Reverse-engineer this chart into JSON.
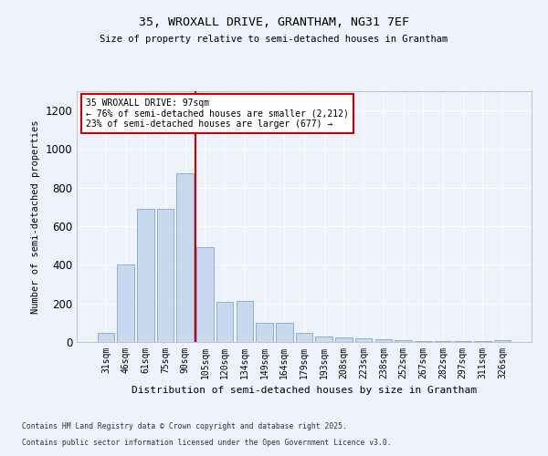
{
  "title1": "35, WROXALL DRIVE, GRANTHAM, NG31 7EF",
  "title2": "Size of property relative to semi-detached houses in Grantham",
  "xlabel": "Distribution of semi-detached houses by size in Grantham",
  "ylabel": "Number of semi-detached properties",
  "bin_labels": [
    "31sqm",
    "46sqm",
    "61sqm",
    "75sqm",
    "90sqm",
    "105sqm",
    "120sqm",
    "134sqm",
    "149sqm",
    "164sqm",
    "179sqm",
    "193sqm",
    "208sqm",
    "223sqm",
    "238sqm",
    "252sqm",
    "267sqm",
    "282sqm",
    "297sqm",
    "311sqm",
    "326sqm"
  ],
  "bar_heights": [
    45,
    400,
    690,
    690,
    875,
    490,
    210,
    215,
    100,
    100,
    45,
    30,
    25,
    20,
    12,
    10,
    5,
    5,
    5,
    5,
    10
  ],
  "bar_color": "#c8d8ef",
  "bar_edgecolor": "#8ab0d8",
  "annotation_line1": "35 WROXALL DRIVE: 97sqm",
  "annotation_line2": "← 76% of semi-detached houses are smaller (2,212)",
  "annotation_line3": "23% of semi-detached houses are larger (677) →",
  "vline_x_index": 4.5,
  "ylim": [
    0,
    1300
  ],
  "yticks": [
    0,
    200,
    400,
    600,
    800,
    1000,
    1200
  ],
  "footnote1": "Contains HM Land Registry data © Crown copyright and database right 2025.",
  "footnote2": "Contains public sector information licensed under the Open Government Licence v3.0.",
  "background_color": "#eef2fa",
  "plot_bg_color": "#eef2fa",
  "grid_color": "#ffffff",
  "vline_color": "#cc0000",
  "annotation_box_edgecolor": "#cc0000",
  "bar_width": 0.85
}
